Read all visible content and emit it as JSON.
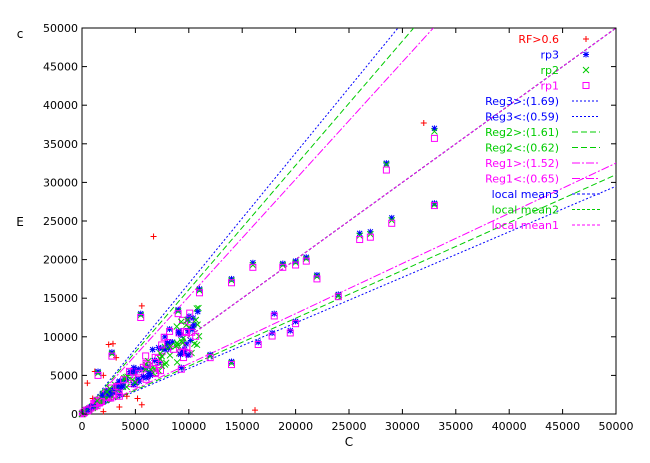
{
  "chart_data": {
    "type": "scatter",
    "title": "",
    "xlabel": "C",
    "ylabel": "E",
    "ylabel_top": "c",
    "xlim": [
      0,
      50000
    ],
    "ylim": [
      0,
      50000
    ],
    "x_ticks": [
      "0",
      "5000",
      "10000",
      "15000",
      "20000",
      "25000",
      "30000",
      "35000",
      "40000",
      "45000",
      "50000"
    ],
    "y_ticks": [
      "0",
      "5000",
      "10000",
      "15000",
      "20000",
      "25000",
      "30000",
      "35000",
      "40000",
      "45000",
      "50000"
    ],
    "grid": false,
    "legend_position": "top-right",
    "series": [
      {
        "name": "RF>0.6",
        "marker": "plus",
        "color": "#ff0000",
        "points": [
          [
            6700,
            23000
          ],
          [
            5600,
            14000
          ],
          [
            16200,
            500
          ],
          [
            2500,
            9000
          ],
          [
            2900,
            9100
          ],
          [
            1200,
            5500
          ],
          [
            2000,
            5000
          ],
          [
            500,
            4000
          ],
          [
            3200,
            7300
          ],
          [
            4200,
            2300
          ],
          [
            5600,
            1200
          ],
          [
            5200,
            2000
          ],
          [
            32000,
            37700
          ],
          [
            2000,
            300
          ],
          [
            3500,
            900
          ],
          [
            1000,
            2000
          ]
        ]
      },
      {
        "name": "rp3",
        "marker": "asterisk",
        "color": "#0000ff",
        "points": [
          [
            28500,
            32500
          ],
          [
            33000,
            37000
          ],
          [
            33000,
            27300
          ],
          [
            29000,
            25400
          ],
          [
            27000,
            23600
          ],
          [
            26000,
            23400
          ],
          [
            21000,
            20300
          ],
          [
            20000,
            19800
          ],
          [
            18800,
            19500
          ],
          [
            16000,
            19600
          ],
          [
            24000,
            15500
          ],
          [
            22000,
            18000
          ],
          [
            14000,
            17500
          ],
          [
            11000,
            16200
          ],
          [
            9000,
            13500
          ],
          [
            5500,
            13000
          ],
          [
            2800,
            8000
          ],
          [
            1500,
            5500
          ],
          [
            14000,
            6800
          ],
          [
            12000,
            7700
          ],
          [
            16500,
            9300
          ],
          [
            17800,
            10500
          ],
          [
            19500,
            10800
          ],
          [
            20000,
            12000
          ],
          [
            18000,
            13000
          ],
          [
            9300,
            6000
          ],
          [
            6000,
            4700
          ],
          [
            3500,
            2500
          ],
          [
            7500,
            8500
          ],
          [
            8200,
            11000
          ]
        ]
      },
      {
        "name": "rp2",
        "marker": "cross",
        "color": "#00cc00",
        "points": [
          [
            28500,
            32300
          ],
          [
            33000,
            36600
          ],
          [
            33000,
            27100
          ],
          [
            29000,
            25100
          ],
          [
            27000,
            23300
          ],
          [
            26000,
            23100
          ],
          [
            21000,
            20100
          ],
          [
            20000,
            19600
          ],
          [
            18800,
            19300
          ],
          [
            16000,
            19300
          ],
          [
            24000,
            15300
          ],
          [
            22000,
            17800
          ],
          [
            14000,
            17300
          ],
          [
            11000,
            16000
          ],
          [
            9000,
            13300
          ],
          [
            5500,
            12800
          ],
          [
            2800,
            7800
          ],
          [
            1500,
            5300
          ],
          [
            14000,
            6600
          ],
          [
            12000,
            7500
          ]
        ]
      },
      {
        "name": "rp1",
        "marker": "square",
        "color": "#ff00ff",
        "points": [
          [
            28500,
            31600
          ],
          [
            33000,
            35700
          ],
          [
            33000,
            27000
          ],
          [
            29000,
            24700
          ],
          [
            27000,
            22900
          ],
          [
            26000,
            22600
          ],
          [
            21000,
            19800
          ],
          [
            20000,
            19300
          ],
          [
            18800,
            19000
          ],
          [
            16000,
            19000
          ],
          [
            24000,
            15200
          ],
          [
            22000,
            17500
          ],
          [
            14000,
            17000
          ],
          [
            11000,
            15700
          ],
          [
            9000,
            13000
          ],
          [
            5500,
            12500
          ],
          [
            2800,
            7500
          ],
          [
            1500,
            5000
          ],
          [
            14000,
            6400
          ],
          [
            12000,
            7300
          ],
          [
            16500,
            9000
          ],
          [
            17800,
            10100
          ],
          [
            19500,
            10500
          ],
          [
            20000,
            11700
          ],
          [
            18000,
            12700
          ],
          [
            9300,
            5800
          ],
          [
            6000,
            4500
          ],
          [
            3500,
            2300
          ],
          [
            7500,
            8200
          ],
          [
            8200,
            10700
          ]
        ]
      }
    ],
    "lines": [
      {
        "name": "Reg3>:(1.69)",
        "slope": 1.69,
        "color": "#0000ff",
        "dash": "2,2"
      },
      {
        "name": "Reg3<:(0.59)",
        "slope": 0.59,
        "color": "#0000ff",
        "dash": "2,2"
      },
      {
        "name": "Reg2>:(1.61)",
        "slope": 1.61,
        "color": "#00cc00",
        "dash": "6,3"
      },
      {
        "name": "Reg2<:(0.62)",
        "slope": 0.62,
        "color": "#00cc00",
        "dash": "6,3"
      },
      {
        "name": "Reg1>:(1.52)",
        "slope": 1.52,
        "color": "#ff00ff",
        "dash": "8,2,2,2"
      },
      {
        "name": "Reg1<:(0.65)",
        "slope": 0.65,
        "color": "#ff00ff",
        "dash": "8,2,2,2"
      },
      {
        "name": "local mean3",
        "slope": 1.0,
        "color": "#0000ff",
        "dash": "3,2"
      },
      {
        "name": "local mean2",
        "slope": 1.0,
        "color": "#00cc00",
        "dash": "3,2"
      },
      {
        "name": "local mean1",
        "slope": 1.0,
        "color": "#ff00ff",
        "dash": "3,2"
      }
    ],
    "diagonal": {
      "slope": 1.0,
      "color": "#000000",
      "dash": "2,3"
    }
  }
}
